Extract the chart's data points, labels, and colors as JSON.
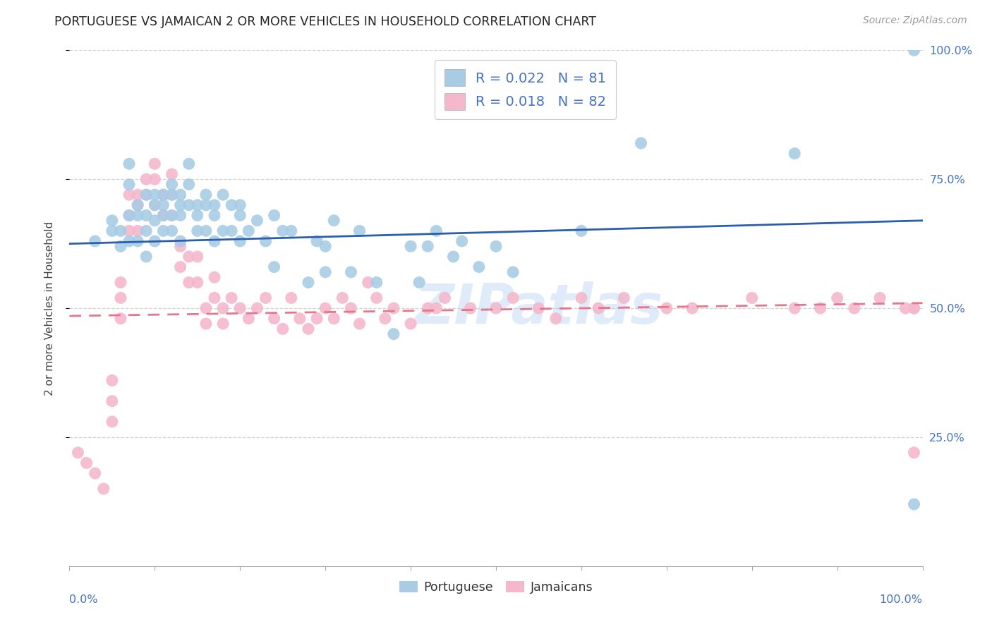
{
  "title": "PORTUGUESE VS JAMAICAN 2 OR MORE VEHICLES IN HOUSEHOLD CORRELATION CHART",
  "source": "Source: ZipAtlas.com",
  "ylabel": "2 or more Vehicles in Household",
  "xlim": [
    0,
    100
  ],
  "ylim": [
    0,
    100
  ],
  "portuguese_color": "#a8cce4",
  "jamaican_color": "#f4b8cc",
  "trendline_blue_color": "#2b5fad",
  "trendline_pink_color": "#e8758a",
  "legend_R1": "R = 0.022",
  "legend_N1": "N = 81",
  "legend_R2": "R = 0.018",
  "legend_N2": "N = 82",
  "trendline_blue_x0": 0,
  "trendline_blue_y0": 62.5,
  "trendline_blue_x1": 100,
  "trendline_blue_y1": 67.0,
  "trendline_pink_x0": 0,
  "trendline_pink_y0": 48.5,
  "trendline_pink_x1": 100,
  "trendline_pink_y1": 51.0,
  "portuguese_x": [
    3,
    5,
    5,
    6,
    6,
    7,
    7,
    7,
    7,
    8,
    8,
    8,
    9,
    9,
    9,
    9,
    10,
    10,
    10,
    10,
    11,
    11,
    11,
    11,
    12,
    12,
    12,
    12,
    13,
    13,
    13,
    13,
    14,
    14,
    14,
    15,
    15,
    15,
    16,
    16,
    16,
    17,
    17,
    17,
    18,
    18,
    19,
    19,
    20,
    20,
    20,
    21,
    22,
    23,
    24,
    24,
    25,
    26,
    28,
    29,
    30,
    30,
    31,
    33,
    34,
    36,
    38,
    40,
    41,
    42,
    43,
    45,
    46,
    48,
    50,
    52,
    60,
    67,
    85,
    99,
    99
  ],
  "portuguese_y": [
    63,
    67,
    65,
    65,
    62,
    78,
    74,
    68,
    63,
    70,
    68,
    63,
    72,
    68,
    65,
    60,
    72,
    70,
    67,
    63,
    72,
    70,
    68,
    65,
    74,
    72,
    68,
    65,
    72,
    70,
    68,
    63,
    78,
    74,
    70,
    70,
    68,
    65,
    72,
    70,
    65,
    70,
    68,
    63,
    72,
    65,
    70,
    65,
    70,
    68,
    63,
    65,
    67,
    63,
    58,
    68,
    65,
    65,
    55,
    63,
    62,
    57,
    67,
    57,
    65,
    55,
    45,
    62,
    55,
    62,
    65,
    60,
    63,
    58,
    62,
    57,
    65,
    82,
    80,
    100,
    12
  ],
  "jamaican_x": [
    1,
    2,
    3,
    4,
    5,
    5,
    5,
    6,
    6,
    6,
    7,
    7,
    7,
    8,
    8,
    8,
    9,
    9,
    10,
    10,
    10,
    11,
    11,
    12,
    12,
    12,
    13,
    13,
    14,
    14,
    15,
    15,
    16,
    16,
    17,
    17,
    18,
    18,
    19,
    20,
    21,
    22,
    23,
    24,
    25,
    26,
    27,
    28,
    29,
    30,
    31,
    32,
    33,
    34,
    35,
    36,
    37,
    38,
    40,
    42,
    43,
    44,
    47,
    50,
    52,
    55,
    57,
    60,
    62,
    65,
    70,
    73,
    80,
    85,
    88,
    90,
    92,
    95,
    98,
    99,
    99,
    99
  ],
  "jamaican_y": [
    22,
    20,
    18,
    15,
    36,
    32,
    28,
    55,
    52,
    48,
    72,
    68,
    65,
    72,
    70,
    65,
    75,
    72,
    78,
    75,
    70,
    72,
    68,
    76,
    72,
    68,
    62,
    58,
    60,
    55,
    60,
    55,
    50,
    47,
    56,
    52,
    50,
    47,
    52,
    50,
    48,
    50,
    52,
    48,
    46,
    52,
    48,
    46,
    48,
    50,
    48,
    52,
    50,
    47,
    55,
    52,
    48,
    50,
    47,
    50,
    50,
    52,
    50,
    50,
    52,
    50,
    48,
    52,
    50,
    52,
    50,
    50,
    52,
    50,
    50,
    52,
    50,
    52,
    50,
    50,
    50,
    22
  ],
  "watermark": "ZIPatlas",
  "background_color": "#ffffff",
  "grid_color": "#d0d0d0",
  "title_fontsize": 12.5,
  "tick_label_color": "#4472c4",
  "source_color": "#999999",
  "right_ytick_labels": [
    "25.0%",
    "50.0%",
    "75.0%",
    "100.0%"
  ],
  "right_ytick_values": [
    25,
    50,
    75,
    100
  ]
}
